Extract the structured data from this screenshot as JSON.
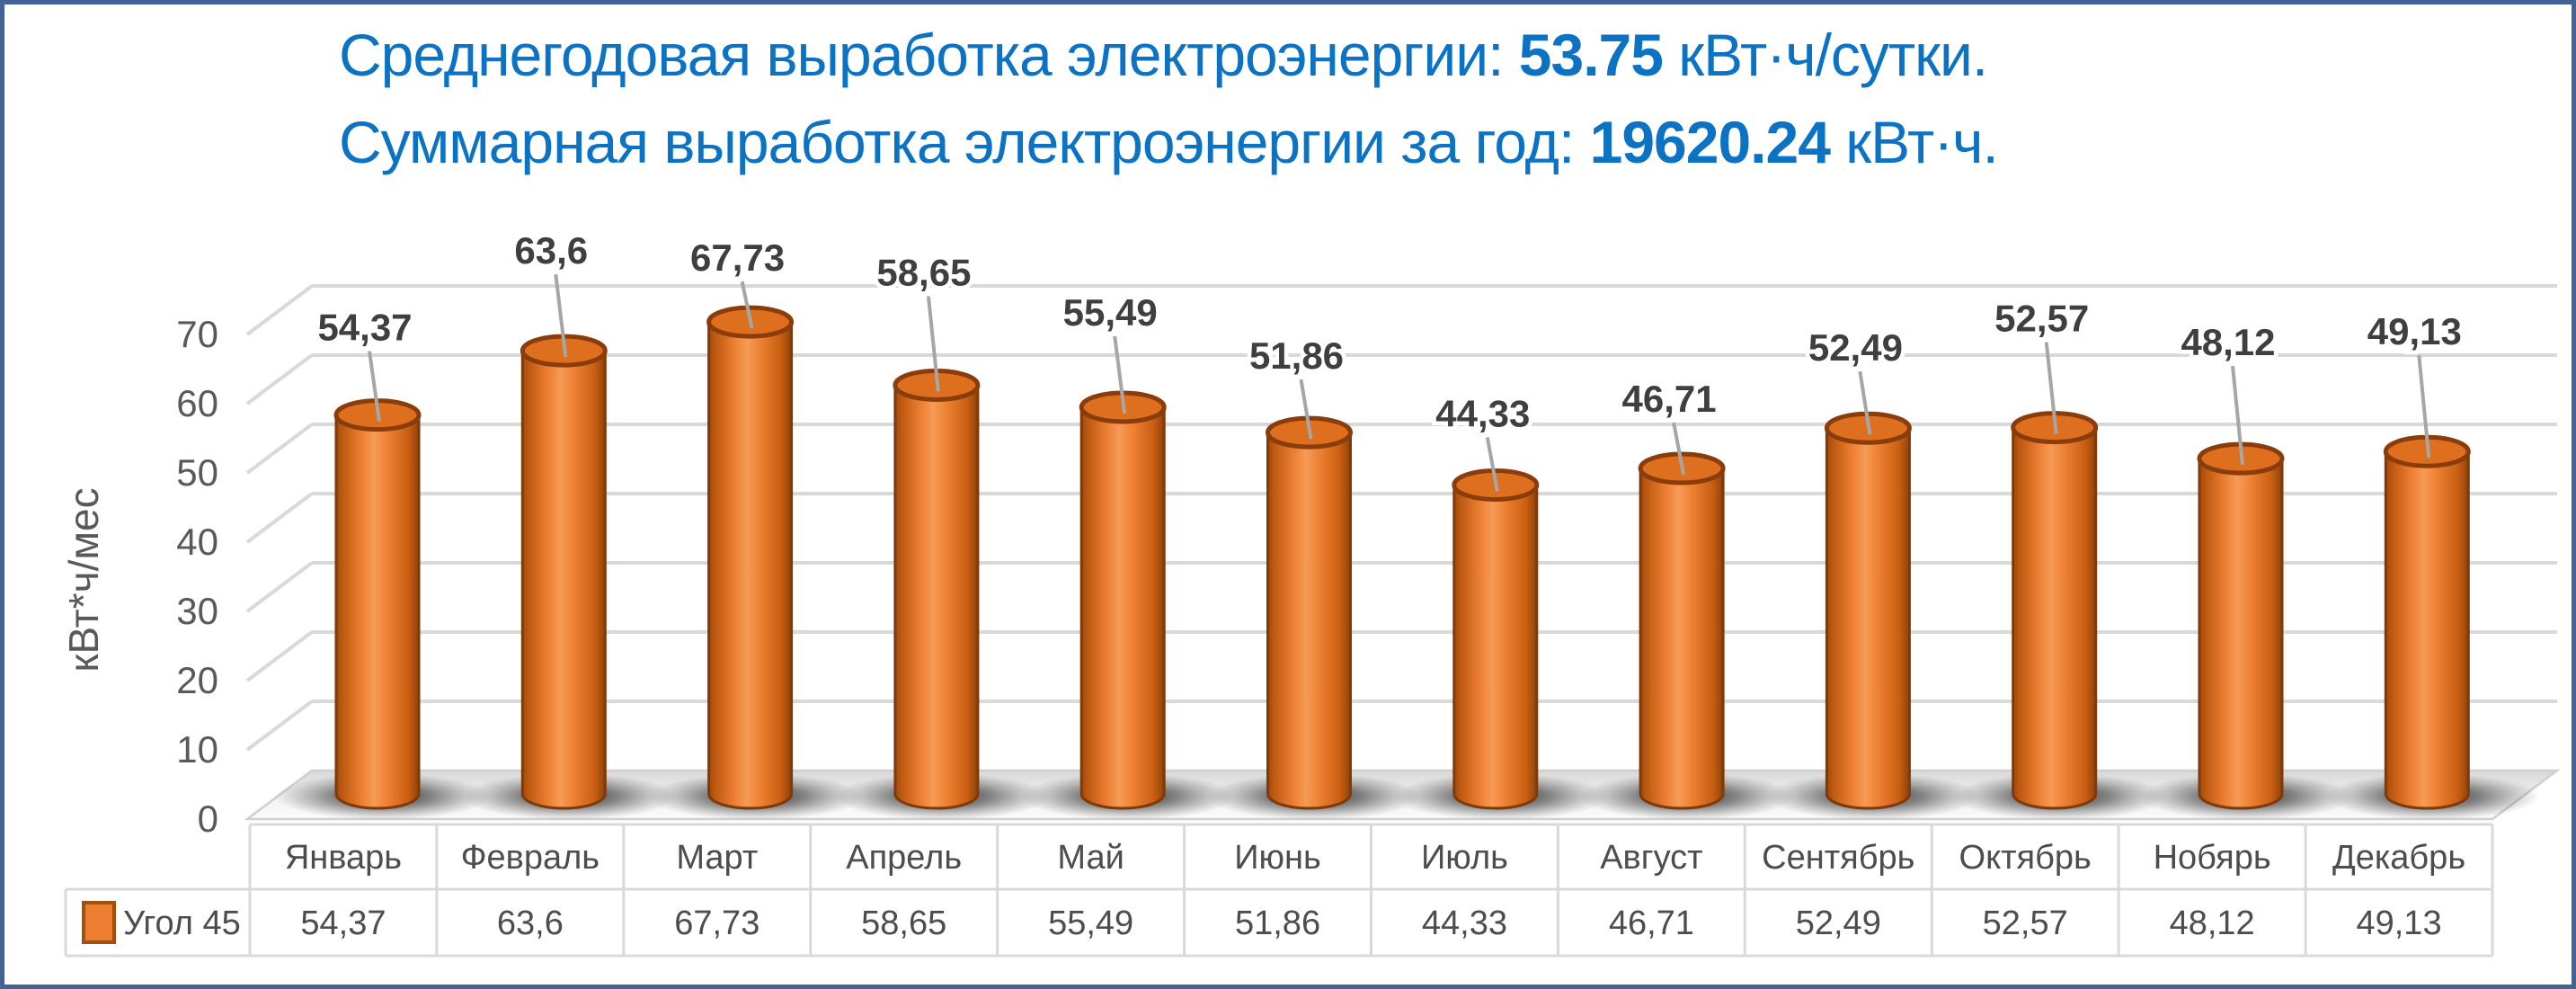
{
  "frame": {
    "border_color": "#426394"
  },
  "title": {
    "color": "#0C72C4",
    "line1": {
      "prefix": "Среднегодовая выработка электроэнергии: ",
      "value": "53.75",
      "suffix": " кВт·ч/сутки."
    },
    "line2": {
      "prefix": "Суммарная выработка электроэнергии за год: ",
      "value": "19620.24",
      "suffix": " кВт·ч."
    }
  },
  "chart_data": {
    "type": "bar",
    "subtype": "3d-cylinder",
    "title": "",
    "categories": [
      "Январь",
      "Февраль",
      "Март",
      "Апрель",
      "Май",
      "Июнь",
      "Июль",
      "Август",
      "Сентябрь",
      "Октябрь",
      "Нобярь",
      "Декабрь"
    ],
    "series": [
      {
        "name": "Угол 45",
        "values": [
          54.37,
          63.6,
          67.73,
          58.65,
          55.49,
          51.86,
          44.33,
          46.71,
          52.49,
          52.57,
          48.12,
          49.13
        ]
      }
    ],
    "value_labels": [
      "54,37",
      "63,6",
      "67,73",
      "58,65",
      "55,49",
      "51,86",
      "44,33",
      "46,71",
      "52,49",
      "52,57",
      "48,12",
      "49,13"
    ],
    "table_values": [
      "54,37",
      "63,6",
      "67,73",
      "58,65",
      "55,49",
      "51,86",
      "44,33",
      "46,71",
      "52,49",
      "52,57",
      "48,12",
      "49,13"
    ],
    "xlabel": "",
    "ylabel": "кВт*ч/мес",
    "ylim": [
      0,
      70
    ],
    "yticks": [
      "0",
      "10",
      "20",
      "30",
      "40",
      "50",
      "60",
      "70"
    ],
    "grid": true,
    "legend_position": "data-table-left",
    "data_table": true
  },
  "colors": {
    "bar_fill": "#ED7D31",
    "bar_dark": "#7E3A08",
    "bar_top": "#DE6F1E",
    "grid": "#D9D9D9",
    "leader": "#A6A6A6",
    "value_label": "#3F3F3F",
    "axis_text": "#595959",
    "table_text": "#4D4D4D",
    "table_border": "#D9D9D9"
  }
}
